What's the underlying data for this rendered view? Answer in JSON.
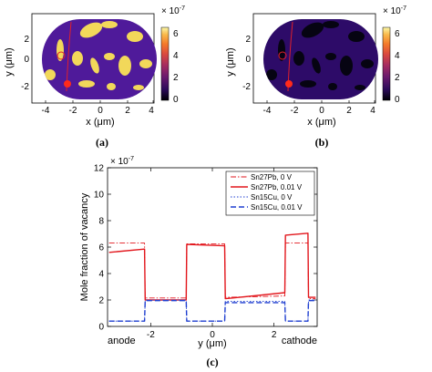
{
  "colors": {
    "inferno": [
      "#000004",
      "#1b0c41",
      "#4a0c6b",
      "#781c6d",
      "#a52c60",
      "#cf4446",
      "#ed6925",
      "#fb9b06",
      "#f7d13d",
      "#fcffa4"
    ],
    "map_bg_a": "#4f1a9a",
    "map_blob_a": "#f2d85a",
    "map_bg_b": "#2d0b68",
    "map_blob_b": "#060412",
    "trace": "#e0202a",
    "dot": "#ff2a1a",
    "pb": "#e2161c",
    "cu": "#1f3fd0"
  },
  "panel_a": {
    "caption": "(a)",
    "colorbar_exp": "× 10",
    "colorbar_exp_power": "-7",
    "colorbar_ticks": [
      "6",
      "4",
      "2",
      "0"
    ],
    "xlabel": "x (μm)",
    "ylabel": "y (μm)",
    "xticks": [
      "-4",
      "-2",
      "0",
      "2",
      "4"
    ],
    "yticks": [
      "2",
      "0",
      "-2"
    ]
  },
  "panel_b": {
    "caption": "(b)",
    "colorbar_exp": "× 10",
    "colorbar_exp_power": "-7",
    "colorbar_ticks": [
      "6",
      "4",
      "2",
      "0"
    ],
    "xlabel": "x (μm)",
    "ylabel": "y (μm)",
    "xticks": [
      "-4",
      "-2",
      "0",
      "2",
      "4"
    ],
    "yticks": [
      "2",
      "0",
      "-2"
    ]
  },
  "panel_c": {
    "caption": "(c)",
    "left_label": "anode",
    "right_label": "cathode"
  },
  "chart_data": [
    {
      "type": "line",
      "xlabel": "y (μm)",
      "ylabel": "Mole fraction of vacancy",
      "y_multiplier_text": "× 10",
      "y_multiplier_power": "-7",
      "xlim": [
        -3.4,
        3.4
      ],
      "ylim": [
        0,
        12
      ],
      "xticks": [
        -2,
        0,
        2
      ],
      "yticks": [
        0,
        2,
        4,
        6,
        8,
        10,
        12
      ],
      "legend_position": "top-right",
      "series": [
        {
          "name": "Sn27Pb, 0 V",
          "style": "dashdot",
          "color": "#e2161c",
          "x": [
            -3.35,
            -2.2,
            -2.18,
            -0.85,
            -0.83,
            0.4,
            0.42,
            2.35,
            2.37,
            3.1,
            3.12,
            3.35
          ],
          "y": [
            6.3,
            6.3,
            2.15,
            2.15,
            6.25,
            6.25,
            2.2,
            2.3,
            6.3,
            6.3,
            2.1,
            2.1
          ]
        },
        {
          "name": "Sn27Pb, 0.01 V",
          "style": "solid",
          "color": "#e2161c",
          "x": [
            -3.35,
            -2.2,
            -2.18,
            -0.85,
            -0.83,
            0.4,
            0.42,
            2.35,
            2.37,
            3.1,
            3.12,
            3.35
          ],
          "y": [
            5.6,
            5.85,
            2.0,
            2.0,
            6.2,
            6.1,
            2.1,
            2.55,
            6.9,
            7.05,
            2.2,
            2.2
          ]
        },
        {
          "name": "Sn15Cu, 0 V",
          "style": "dotted",
          "color": "#1f3fd0",
          "x": [
            -3.35,
            -2.2,
            -2.18,
            -0.85,
            -0.83,
            0.4,
            0.42,
            2.35,
            2.37,
            3.1,
            3.12,
            3.35
          ],
          "y": [
            0.4,
            0.4,
            2.0,
            2.0,
            0.4,
            0.4,
            1.9,
            1.9,
            0.4,
            0.4,
            2.0,
            2.0
          ]
        },
        {
          "name": "Sn15Cu, 0.01 V",
          "style": "dashed",
          "color": "#1f3fd0",
          "x": [
            -3.35,
            -2.2,
            -2.18,
            -0.85,
            -0.83,
            0.4,
            0.42,
            2.35,
            2.37,
            3.1,
            3.12,
            3.35
          ],
          "y": [
            0.4,
            0.4,
            1.95,
            1.95,
            0.4,
            0.4,
            1.8,
            1.8,
            0.4,
            0.4,
            1.95,
            1.95
          ]
        }
      ]
    }
  ]
}
